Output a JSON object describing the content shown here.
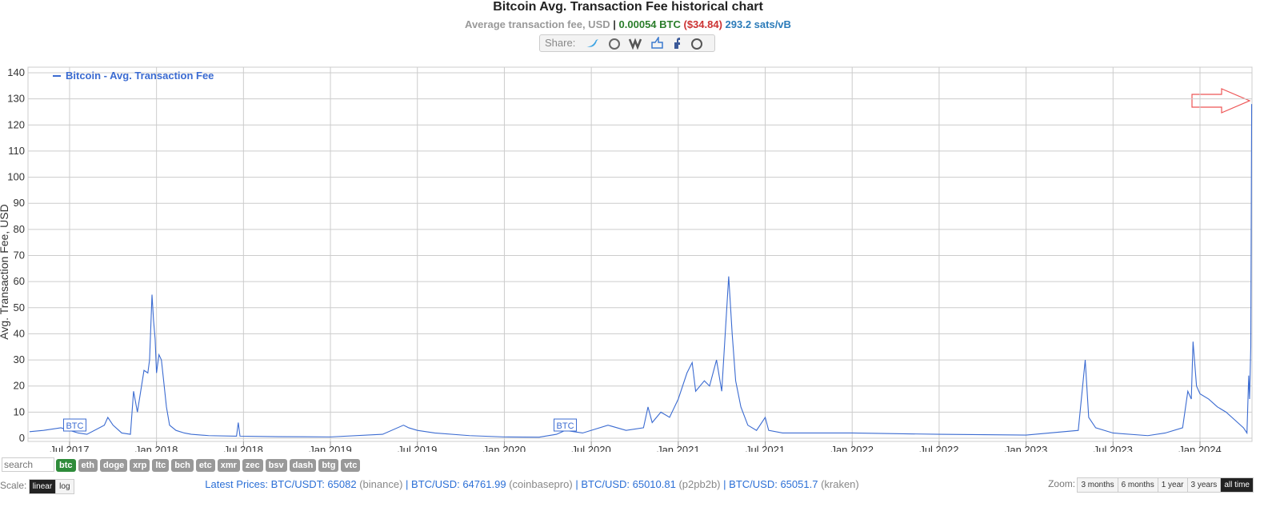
{
  "header": {
    "title": "Bitcoin Avg. Transaction Fee historical chart",
    "subtitle": "Average transaction fee, USD",
    "sep": "|",
    "btc": "0.00054 BTC",
    "usd": "($34.84)",
    "sats": "293.2 sats/vB",
    "share": "Share:"
  },
  "chart_data": {
    "type": "line",
    "ylabel": "Avg. Transaction Fee, USD",
    "legend": "top-left",
    "grid": true,
    "xlim": [
      2017.261,
      2024.299
    ],
    "xticks": [
      {
        "value": 2017.5,
        "label": "Jul 2017"
      },
      {
        "value": 2018,
        "label": "Jan 2018"
      },
      {
        "value": 2018.5,
        "label": "Jul 2018"
      },
      {
        "value": 2019,
        "label": "Jan 2019"
      },
      {
        "value": 2019.5,
        "label": "Jul 2019"
      },
      {
        "value": 2020,
        "label": "Jan 2020"
      },
      {
        "value": 2020.5,
        "label": "Jul 2020"
      },
      {
        "value": 2021,
        "label": "Jan 2021"
      },
      {
        "value": 2021.5,
        "label": "Jul 2021"
      },
      {
        "value": 2022,
        "label": "Jan 2022"
      },
      {
        "value": 2022.5,
        "label": "Jul 2022"
      },
      {
        "value": 2023,
        "label": "Jan 2023"
      },
      {
        "value": 2023.5,
        "label": "Jul 2023"
      },
      {
        "value": 2024,
        "label": "Jan 2024"
      }
    ],
    "ylim": [
      0,
      140
    ],
    "yticks": [
      0,
      10,
      20,
      30,
      40,
      50,
      60,
      70,
      80,
      90,
      100,
      110,
      120,
      130,
      140
    ],
    "x": [
      2017.27,
      2017.35,
      2017.45,
      2017.5,
      2017.55,
      2017.6,
      2017.7,
      2017.72,
      2017.75,
      2017.8,
      2017.85,
      2017.868,
      2017.89,
      2017.928,
      2017.95,
      2017.96,
      2017.974,
      2017.983,
      2017.992,
      2018.0,
      2018.014,
      2018.028,
      2018.041,
      2018.057,
      2018.075,
      2018.112,
      2018.16,
      2018.2,
      2018.3,
      2018.46,
      2018.47,
      2018.48,
      2018.7,
      2019.0,
      2019.3,
      2019.42,
      2019.45,
      2019.5,
      2019.6,
      2019.8,
      2020.0,
      2020.2,
      2020.3,
      2020.35,
      2020.45,
      2020.596,
      2020.7,
      2020.8,
      2020.826,
      2020.85,
      2020.9,
      2020.95,
      2021.0,
      2021.05,
      2021.08,
      2021.1,
      2021.15,
      2021.18,
      2021.22,
      2021.25,
      2021.29,
      2021.31,
      2021.33,
      2021.36,
      2021.4,
      2021.45,
      2021.5,
      2021.52,
      2021.6,
      2022.0,
      2022.5,
      2023.0,
      2023.3,
      2023.34,
      2023.36,
      2023.4,
      2023.5,
      2023.7,
      2023.8,
      2023.9,
      2023.93,
      2023.95,
      2023.96,
      2023.98,
      2024.0,
      2024.05,
      2024.1,
      2024.15,
      2024.2,
      2024.25,
      2024.27,
      2024.28,
      2024.285,
      2024.292,
      2024.297
    ],
    "series": [
      {
        "name": "Bitcoin - Avg. Transaction Fee",
        "color": "#3b6bd1",
        "values": [
          2.5,
          3,
          4,
          3,
          2,
          1.5,
          5,
          8,
          5,
          2,
          1.5,
          18,
          10,
          26,
          25,
          30,
          55,
          45,
          38,
          25,
          32,
          30,
          22,
          12,
          5,
          3,
          2,
          1.5,
          1,
          0.8,
          6,
          0.8,
          0.6,
          0.5,
          1.5,
          5,
          4,
          3,
          2,
          1,
          0.5,
          0.4,
          1.5,
          3,
          2,
          5,
          3,
          4,
          12,
          6,
          10,
          8,
          15,
          25,
          29,
          18,
          22,
          20,
          30,
          18,
          62,
          40,
          22,
          12,
          5,
          3,
          8,
          3,
          2,
          2,
          1.5,
          1.2,
          3,
          30,
          8,
          4,
          2,
          1,
          2,
          4,
          18,
          15,
          37,
          20,
          17,
          15,
          12,
          10,
          7,
          4,
          2,
          24,
          15,
          35,
          128
        ]
      }
    ],
    "annotations": [
      {
        "x": 2017.53,
        "text": "BTC"
      },
      {
        "x": 2020.35,
        "text": "BTC"
      }
    ]
  },
  "ui": {
    "search": "search",
    "coins": [
      "btc",
      "eth",
      "doge",
      "xrp",
      "ltc",
      "bch",
      "etc",
      "xmr",
      "zec",
      "bsv",
      "dash",
      "btg",
      "vtc"
    ],
    "scale_label": "Scale:",
    "scales": [
      "linear",
      "log"
    ],
    "prices_label": "Latest Prices:",
    "prices": [
      {
        "pair": "BTC/USDT: 65082",
        "source": "(binance)"
      },
      {
        "pair": "BTC/USD: 64761.99",
        "source": "(coinbasepro)"
      },
      {
        "pair": "BTC/USD: 65010.81",
        "source": "(p2pb2b)"
      },
      {
        "pair": "BTC/USD: 65051.7",
        "source": "(kraken)"
      }
    ],
    "zoom_label": "Zoom:",
    "zooms": [
      "3 months",
      "6 months",
      "1 year",
      "3 years",
      "all time"
    ]
  }
}
